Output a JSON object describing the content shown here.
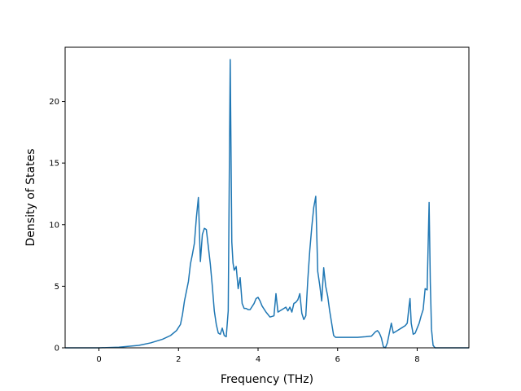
{
  "chart_data": {
    "type": "line",
    "title": "",
    "xlabel": "Frequency (THz)",
    "ylabel": "Density of States",
    "xlim": [
      -0.85,
      9.3
    ],
    "ylim": [
      0,
      24.4
    ],
    "grid": false,
    "legend": "none",
    "x_ticks": [
      {
        "value": 0,
        "label": "0"
      },
      {
        "value": 2,
        "label": "2"
      },
      {
        "value": 4,
        "label": "4"
      },
      {
        "value": 6,
        "label": "6"
      },
      {
        "value": 8,
        "label": "8"
      }
    ],
    "y_ticks": [
      {
        "value": 0,
        "label": "0"
      },
      {
        "value": 5,
        "label": "5"
      },
      {
        "value": 10,
        "label": "10"
      },
      {
        "value": 15,
        "label": "15"
      },
      {
        "value": 20,
        "label": "20"
      }
    ],
    "series": [
      {
        "color": "#1f77b4",
        "x": [
          -0.85,
          0.0,
          0.5,
          1.0,
          1.3,
          1.6,
          1.8,
          1.95,
          2.05,
          2.1,
          2.15,
          2.2,
          2.25,
          2.3,
          2.35,
          2.4,
          2.45,
          2.5,
          2.55,
          2.6,
          2.65,
          2.7,
          2.75,
          2.8,
          2.85,
          2.9,
          2.95,
          3.0,
          3.05,
          3.1,
          3.15,
          3.2,
          3.25,
          3.3,
          3.34,
          3.37,
          3.4,
          3.45,
          3.5,
          3.55,
          3.6,
          3.65,
          3.7,
          3.75,
          3.8,
          3.9,
          3.95,
          4.0,
          4.05,
          4.1,
          4.2,
          4.3,
          4.4,
          4.45,
          4.5,
          4.6,
          4.7,
          4.75,
          4.8,
          4.85,
          4.9,
          4.95,
          5.0,
          5.05,
          5.1,
          5.15,
          5.2,
          5.25,
          5.3,
          5.35,
          5.4,
          5.45,
          5.5,
          5.55,
          5.6,
          5.65,
          5.7,
          5.75,
          5.8,
          5.85,
          5.9,
          5.95,
          6.0,
          6.2,
          6.5,
          6.7,
          6.85,
          6.95,
          7.0,
          7.05,
          7.1,
          7.15,
          7.2,
          7.25,
          7.3,
          7.35,
          7.4,
          7.5,
          7.6,
          7.7,
          7.75,
          7.8,
          7.82,
          7.85,
          7.9,
          7.95,
          8.0,
          8.05,
          8.1,
          8.15,
          8.2,
          8.25,
          8.3,
          8.33,
          8.36,
          8.4,
          8.45,
          8.5,
          9.3
        ],
        "y": [
          0.0,
          0.0,
          0.05,
          0.2,
          0.4,
          0.7,
          1.0,
          1.4,
          1.9,
          2.7,
          3.8,
          4.6,
          5.4,
          6.8,
          7.6,
          8.5,
          10.6,
          12.2,
          7.0,
          9.2,
          9.7,
          9.6,
          8.2,
          6.8,
          5.0,
          3.0,
          1.9,
          1.2,
          1.1,
          1.6,
          1.0,
          0.9,
          3.0,
          23.4,
          8.6,
          6.9,
          6.3,
          6.6,
          4.8,
          5.7,
          3.6,
          3.2,
          3.2,
          3.1,
          3.1,
          3.6,
          4.0,
          4.1,
          3.8,
          3.4,
          2.9,
          2.5,
          2.6,
          4.4,
          2.9,
          3.1,
          3.3,
          3.0,
          3.3,
          2.9,
          3.6,
          3.7,
          3.9,
          4.4,
          2.8,
          2.3,
          2.6,
          5.5,
          7.9,
          9.8,
          11.4,
          12.3,
          6.2,
          5.1,
          3.8,
          6.5,
          5.0,
          4.2,
          3.0,
          2.0,
          1.0,
          0.85,
          0.85,
          0.85,
          0.85,
          0.9,
          0.95,
          1.3,
          1.4,
          1.2,
          0.8,
          0.1,
          0.0,
          0.4,
          1.2,
          2.0,
          1.2,
          1.4,
          1.6,
          1.8,
          2.0,
          3.5,
          4.0,
          2.0,
          1.1,
          1.2,
          1.6,
          2.0,
          2.6,
          3.1,
          4.8,
          4.7,
          11.8,
          5.3,
          1.5,
          0.2,
          0.0,
          0.0,
          0.0
        ]
      }
    ]
  }
}
